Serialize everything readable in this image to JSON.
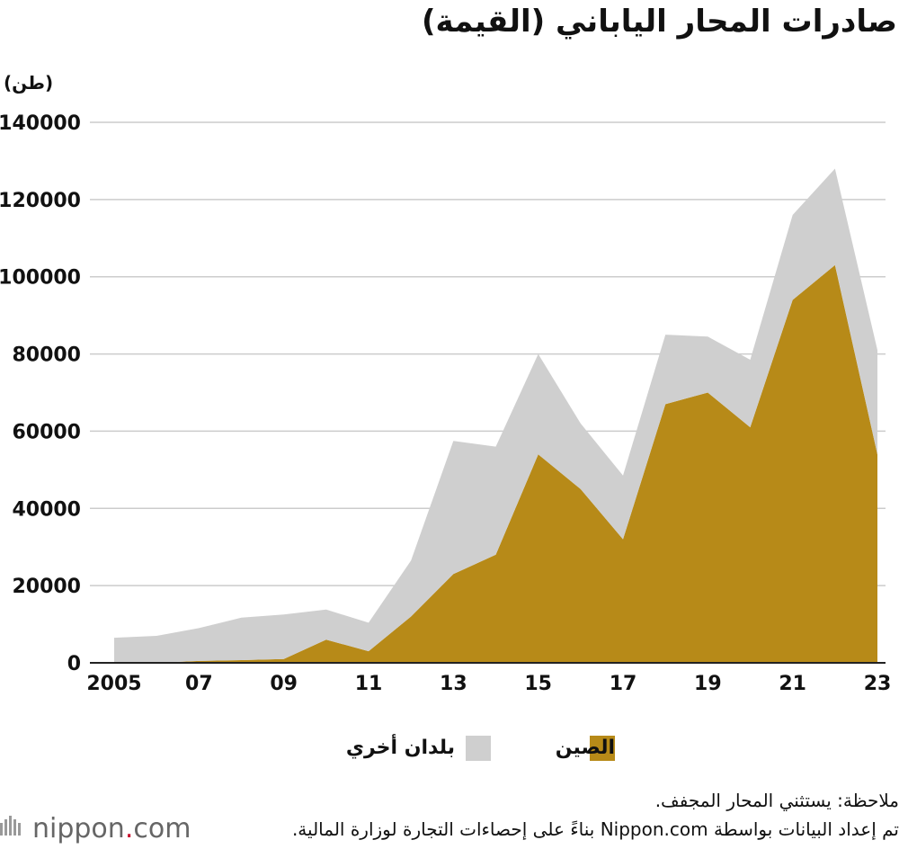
{
  "title": "صادرات المحار الياباني (القيمة)",
  "unit_label": "(طن)",
  "colors": {
    "china": "#b78a18",
    "others": "#cfcfcf",
    "grid": "#cccccc",
    "axis": "#222222",
    "logo_accent": "#c8102e"
  },
  "chart_data": {
    "type": "area",
    "stacked": true,
    "x": [
      2005,
      2006,
      2007,
      2008,
      2009,
      2010,
      2011,
      2012,
      2013,
      2014,
      2015,
      2016,
      2017,
      2018,
      2019,
      2020,
      2021,
      2022,
      2023
    ],
    "xtick_values": [
      2005,
      2007,
      2009,
      2011,
      2013,
      2015,
      2017,
      2019,
      2021,
      2023
    ],
    "xtick_labels": [
      "2005",
      "07",
      "09",
      "11",
      "13",
      "15",
      "17",
      "19",
      "21",
      "23"
    ],
    "ylim": [
      0,
      140000
    ],
    "yticks": [
      0,
      20000,
      40000,
      60000,
      80000,
      100000,
      120000,
      140000
    ],
    "grid": true,
    "legend_position": "bottom",
    "series": [
      {
        "name": "الصين",
        "color_key": "china",
        "values": [
          0,
          0,
          500,
          700,
          1000,
          6000,
          3000,
          12000,
          23000,
          28000,
          54000,
          45000,
          32000,
          67000,
          70000,
          61000,
          94000,
          103000,
          54000
        ]
      },
      {
        "name": "بلدان أخري",
        "color_key": "others",
        "values": [
          6500,
          7000,
          8500,
          11000,
          11500,
          7800,
          7400,
          14500,
          34500,
          28000,
          26000,
          17000,
          16500,
          18000,
          14500,
          17500,
          22000,
          25000,
          27000
        ]
      }
    ]
  },
  "legend": [
    {
      "label": "الصين",
      "color_key": "china"
    },
    {
      "label": "بلدان أخري",
      "color_key": "others"
    }
  ],
  "note": "ملاحظة: يستثني المحار المجفف.",
  "source": "تم إعداد البيانات بواسطة Nippon.com بناءً على إحصاءات التجارة لوزارة المالية.",
  "logo": {
    "name": "nippon",
    "dot": ".",
    "suffix": "com",
    "icon": "nippon-logo-icon"
  }
}
